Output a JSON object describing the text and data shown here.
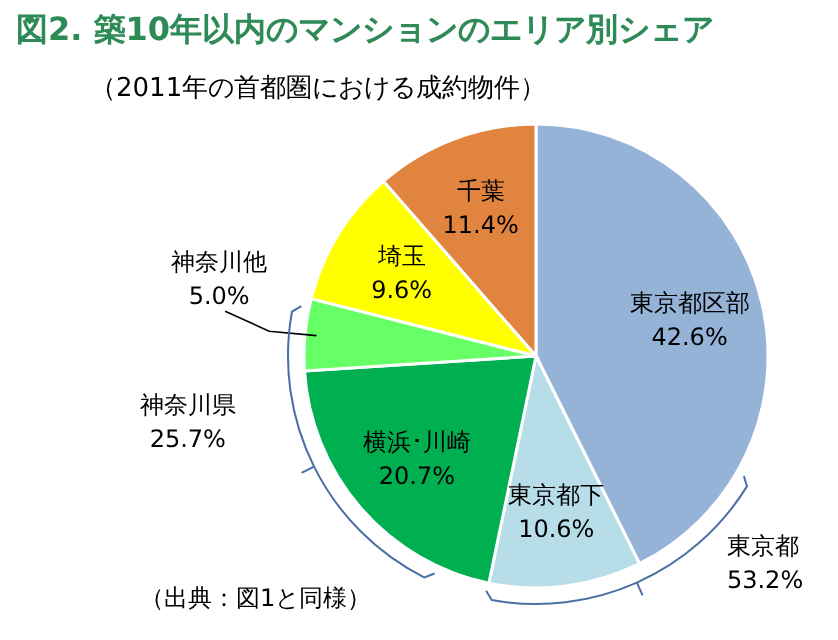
{
  "chart_data": {
    "type": "pie",
    "title": "図2. 築10年以内のマンションのエリア別シェア",
    "subtitle": "（2011年の首都圏における成約物件）",
    "categories": [
      "東京都区部",
      "東京都下",
      "横浜･川崎",
      "神奈川他",
      "埼玉",
      "千葉"
    ],
    "values": [
      42.6,
      10.6,
      20.7,
      5.0,
      9.6,
      11.4
    ],
    "colors": [
      "#95b3d7",
      "#b7dee8",
      "#00b050",
      "#66ff66",
      "#ffff00",
      "#e0843f"
    ],
    "value_labels": [
      "42.6%",
      "10.6%",
      "20.7%",
      "5.0%",
      "9.6%",
      "11.4%"
    ],
    "annotations": [
      "東京都\n53.2%",
      "神奈川県\n25.7%",
      "（出典：図1と同様）"
    ]
  }
}
